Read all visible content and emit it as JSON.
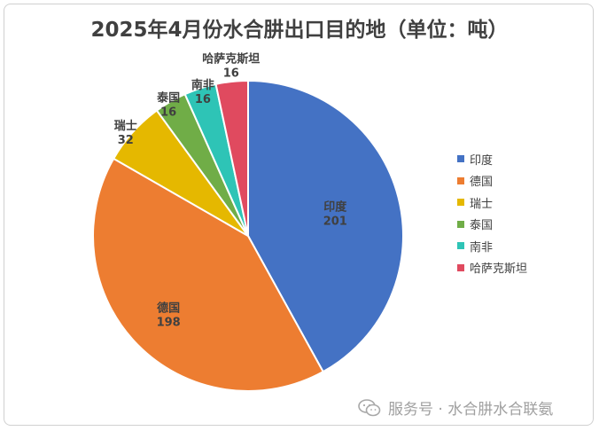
{
  "chart_data": {
    "type": "pie",
    "title": "2025年4月份水合肼出口目的地（单位：吨）",
    "categories": [
      "印度",
      "德国",
      "瑞士",
      "泰国",
      "南非",
      "哈萨克斯坦"
    ],
    "values": [
      201,
      198,
      32,
      16,
      16,
      16
    ],
    "colors": [
      "#4472C4",
      "#ED7D31",
      "#E5B800",
      "#70AD47",
      "#2EC4B6",
      "#E04A5F"
    ],
    "legend": "right"
  },
  "watermark": {
    "icon": "wechat-icon",
    "text": "服务号 · 水合肼水合联氨"
  }
}
